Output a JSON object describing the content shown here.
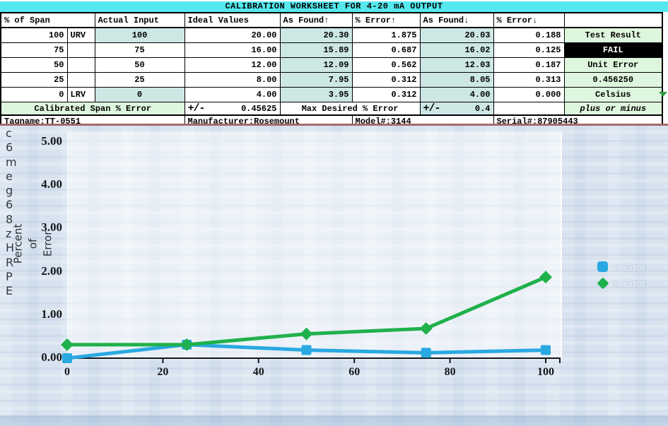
{
  "title": "CALIBRATION WORKSHEET FOR 4-20 mA OUTPUT",
  "table": {
    "headers": {
      "span": "% of Span",
      "actual_input": "Actual Input",
      "ideal_values": "Ideal Values",
      "as_found_up": "As Found↑",
      "error_up": "% Error↑",
      "as_found_down": "As Found↓",
      "error_down": "% Error↓",
      "side": ""
    },
    "rows": [
      {
        "span": "100",
        "tag": "URV",
        "input": "100",
        "ideal": "20.00",
        "found_up": "20.30",
        "err_up": "1.875",
        "found_dn": "20.03",
        "err_dn": "0.188",
        "side": "Test Result"
      },
      {
        "span": "75",
        "tag": "",
        "input": "75",
        "ideal": "16.00",
        "found_up": "15.89",
        "err_up": "0.687",
        "found_dn": "16.02",
        "err_dn": "0.125",
        "side": "FAIL"
      },
      {
        "span": "50",
        "tag": "",
        "input": "50",
        "ideal": "12.00",
        "found_up": "12.09",
        "err_up": "0.562",
        "found_dn": "12.03",
        "err_dn": "0.187",
        "side": "Unit Error"
      },
      {
        "span": "25",
        "tag": "",
        "input": "25",
        "ideal": "8.00",
        "found_up": "7.95",
        "err_up": "0.312",
        "found_dn": "8.05",
        "err_dn": "0.313",
        "side": "0.456250"
      },
      {
        "span": "0",
        "tag": "LRV",
        "input": "0",
        "ideal": "4.00",
        "found_up": "3.95",
        "err_up": "0.312",
        "found_dn": "4.00",
        "err_dn": "0.000",
        "side": "Celsius"
      }
    ],
    "summary": {
      "calibrated_label": "Calibrated Span % Error",
      "pm1": "+/-",
      "calibrated_value": "0.45625",
      "max_label": "Max Desired % Error",
      "pm2": "+/-",
      "max_value": "0.4",
      "side_note": "plus or minus"
    },
    "info": {
      "tagname": "Tagname:TT-0551",
      "manufacturer": "Manufacturer:Rosemount",
      "model": "Model#:3144",
      "serial": "Serial#:87905443"
    }
  },
  "chart_data": {
    "type": "line",
    "x": [
      0,
      25,
      50,
      75,
      100
    ],
    "series": [
      {
        "name": "% Error↓",
        "color": "#29A9E1",
        "marker": "square",
        "values": [
          0.0,
          0.313,
          0.187,
          0.125,
          0.188
        ]
      },
      {
        "name": "% Error↑",
        "color": "#1FB14C",
        "marker": "diamond",
        "values": [
          0.312,
          0.312,
          0.562,
          0.687,
          1.875
        ]
      }
    ],
    "ylabel": "Percent of\nError",
    "xlabel": "",
    "title": "",
    "xlim": [
      0,
      100
    ],
    "ylim": [
      0,
      5
    ],
    "grid": false,
    "legend_position": "right",
    "legend": [
      "% Error↓",
      "% Error↑"
    ],
    "y_tick_values": [
      0,
      1,
      2,
      3,
      4,
      5
    ],
    "y_tick_labels": [
      "0.00",
      "1.00",
      "2.00",
      "3.00",
      "4.00",
      "5.00"
    ],
    "x_tick_values": [
      0,
      20,
      40,
      60,
      80,
      100
    ],
    "x_tick_labels": [
      "0",
      "20",
      "40",
      "60",
      "80",
      "100"
    ]
  },
  "overlay_letters": "c\n6\nm\ne\ng\n6\n8\nz\nH\nR\nP\nE",
  "colors": {
    "title_bar": "#55E9EF",
    "teal_cell": "#CDE7E5",
    "green_cell": "#DFF6DE",
    "fail_bg": "#000000",
    "dropdown_arrow": "#2F9E44",
    "divider_red": "#A66A6A",
    "chart_bg": "#D8E3EF",
    "series_blue": "#29A9E1",
    "series_green": "#1FB14C"
  }
}
